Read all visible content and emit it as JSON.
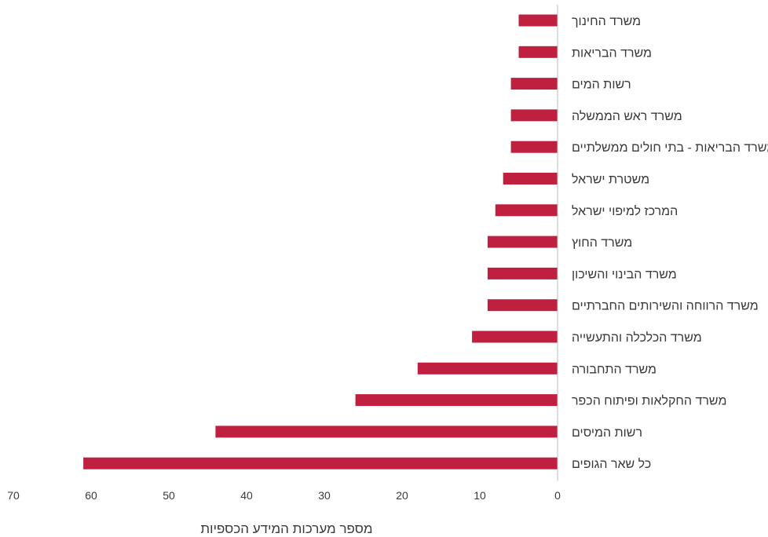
{
  "chart_data": {
    "type": "bar",
    "orientation": "horizontal",
    "xlabel": "מספר מערכות המידע הכספיות",
    "xlim": [
      0,
      70
    ],
    "x_ticks": [
      70,
      60,
      50,
      40,
      30,
      20,
      10,
      0
    ],
    "x_reversed": true,
    "grid": false,
    "bar_color": "#c0203f",
    "categories": [
      "משרד החינוך",
      "משרד הבריאות",
      "רשות המים",
      "משרד ראש הממשלה",
      "משרד הבריאות - בתי חולים ממשלתיים",
      "משטרת ישראל",
      "המרכז למיפוי ישראל",
      "משרד החוץ",
      "משרד הבינוי והשיכון",
      "משרד הרווחה והשירותים החברתיים",
      "משרד הכלכלה והתעשייה",
      "משרד התחבורה",
      "משרד החקלאות ופיתוח הכפר",
      "רשות המיסים",
      "כל שאר הגופים"
    ],
    "values": [
      5,
      5,
      6,
      6,
      6,
      7,
      8,
      9,
      9,
      9,
      11,
      18,
      26,
      44,
      61
    ]
  }
}
